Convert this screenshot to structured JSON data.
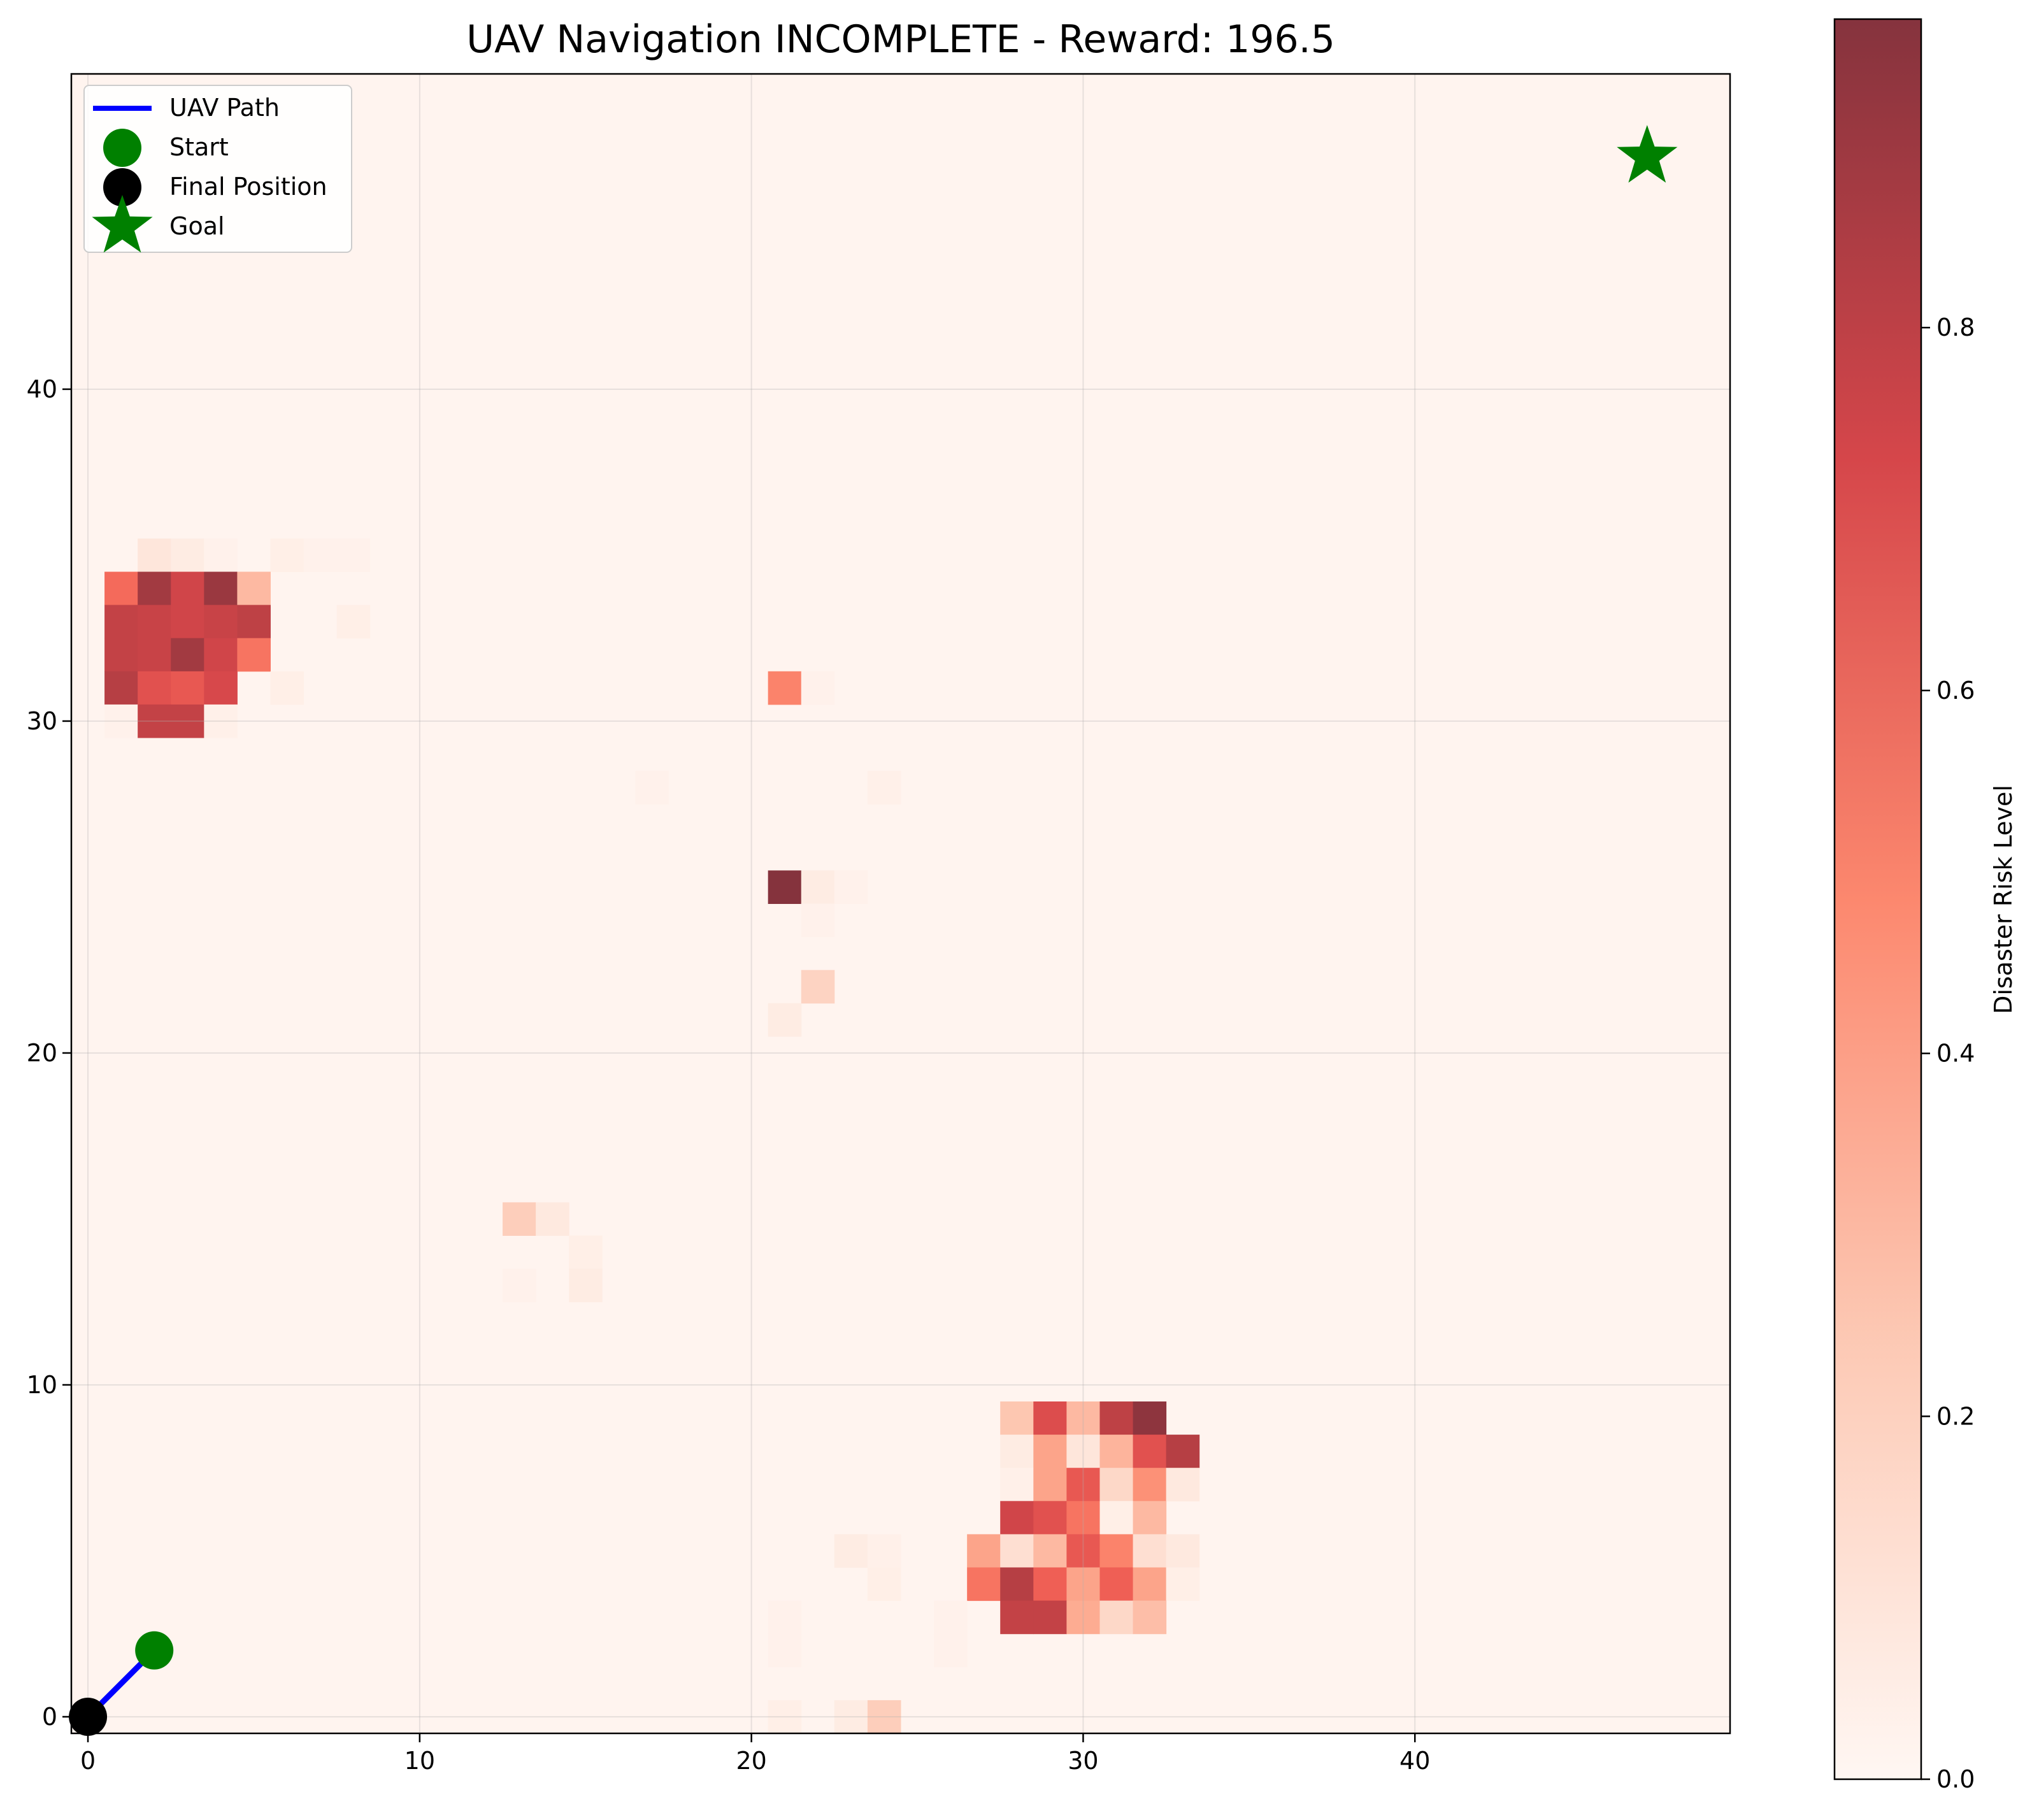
{
  "chart_data": {
    "type": "heatmap",
    "title": "UAV Navigation INCOMPLETE - Reward: 196.5",
    "xlabel": "",
    "ylabel": "",
    "xlim": [
      -0.5,
      49.5
    ],
    "ylim": [
      -0.5,
      49.5
    ],
    "x_ticks": [
      0,
      10,
      20,
      30,
      40
    ],
    "y_ticks": [
      0,
      10,
      20,
      30,
      40
    ],
    "grid": true,
    "legend_placement": "upper-left",
    "legend": [
      {
        "label": "UAV Path",
        "marker": "line",
        "color": "#0000ff"
      },
      {
        "label": "Start",
        "marker": "circle",
        "color": "#008000"
      },
      {
        "label": "Final Position",
        "marker": "circle",
        "color": "#000000"
      },
      {
        "label": "Goal",
        "marker": "star",
        "color": "#008000"
      }
    ],
    "path": [
      [
        2,
        2
      ],
      [
        0,
        0
      ]
    ],
    "start": [
      2,
      2
    ],
    "final_position": [
      0,
      0
    ],
    "goal": [
      47,
      47
    ],
    "colorbar": {
      "label": "Disaster Risk Level",
      "range": [
        0.0,
        0.97
      ],
      "ticks": [
        0.0,
        0.2,
        0.4,
        0.6,
        0.8
      ],
      "tick_labels": [
        "0.0",
        "0.2",
        "0.4",
        "0.6",
        "0.8"
      ],
      "colormap": "Reds",
      "alpha": 0.8
    },
    "grid_size": [
      50,
      50
    ],
    "background_risk": 0.02,
    "risk_cells": [
      [
        2,
        35,
        0.12
      ],
      [
        3,
        35,
        0.08
      ],
      [
        4,
        35,
        0.04
      ],
      [
        6,
        35,
        0.06
      ],
      [
        7,
        35,
        0.04
      ],
      [
        8,
        35,
        0.04
      ],
      [
        1,
        34,
        0.58
      ],
      [
        2,
        34,
        0.9
      ],
      [
        3,
        34,
        0.75
      ],
      [
        4,
        34,
        0.92
      ],
      [
        5,
        34,
        0.3
      ],
      [
        1,
        33,
        0.8
      ],
      [
        2,
        33,
        0.78
      ],
      [
        3,
        33,
        0.75
      ],
      [
        4,
        33,
        0.78
      ],
      [
        5,
        33,
        0.82
      ],
      [
        8,
        33,
        0.06
      ],
      [
        1,
        32,
        0.8
      ],
      [
        2,
        32,
        0.78
      ],
      [
        3,
        32,
        0.9
      ],
      [
        4,
        32,
        0.75
      ],
      [
        5,
        32,
        0.55
      ],
      [
        1,
        31,
        0.85
      ],
      [
        2,
        31,
        0.68
      ],
      [
        3,
        31,
        0.65
      ],
      [
        4,
        31,
        0.72
      ],
      [
        6,
        31,
        0.06
      ],
      [
        1,
        30,
        0.04
      ],
      [
        2,
        30,
        0.8
      ],
      [
        3,
        30,
        0.8
      ],
      [
        4,
        30,
        0.05
      ],
      [
        21,
        31,
        0.5
      ],
      [
        22,
        31,
        0.04
      ],
      [
        17,
        28,
        0.04
      ],
      [
        24,
        28,
        0.05
      ],
      [
        21,
        25,
        0.97
      ],
      [
        22,
        25,
        0.08
      ],
      [
        23,
        25,
        0.04
      ],
      [
        22,
        24,
        0.04
      ],
      [
        22,
        22,
        0.2
      ],
      [
        21,
        21,
        0.08
      ],
      [
        13,
        15,
        0.22
      ],
      [
        14,
        15,
        0.1
      ],
      [
        15,
        14,
        0.06
      ],
      [
        13,
        13,
        0.04
      ],
      [
        15,
        13,
        0.08
      ],
      [
        28,
        9,
        0.25
      ],
      [
        29,
        9,
        0.7
      ],
      [
        30,
        9,
        0.3
      ],
      [
        31,
        9,
        0.82
      ],
      [
        32,
        9,
        0.95
      ],
      [
        28,
        8,
        0.08
      ],
      [
        29,
        8,
        0.38
      ],
      [
        30,
        8,
        0.12
      ],
      [
        31,
        8,
        0.32
      ],
      [
        32,
        8,
        0.68
      ],
      [
        33,
        8,
        0.85
      ],
      [
        28,
        7,
        0.05
      ],
      [
        29,
        7,
        0.38
      ],
      [
        30,
        7,
        0.65
      ],
      [
        31,
        7,
        0.18
      ],
      [
        32,
        7,
        0.45
      ],
      [
        33,
        7,
        0.1
      ],
      [
        28,
        6,
        0.75
      ],
      [
        29,
        6,
        0.68
      ],
      [
        30,
        6,
        0.55
      ],
      [
        31,
        6,
        0.06
      ],
      [
        32,
        6,
        0.3
      ],
      [
        23,
        5,
        0.08
      ],
      [
        24,
        5,
        0.05
      ],
      [
        27,
        5,
        0.38
      ],
      [
        28,
        5,
        0.15
      ],
      [
        29,
        5,
        0.3
      ],
      [
        30,
        5,
        0.65
      ],
      [
        31,
        5,
        0.5
      ],
      [
        32,
        5,
        0.15
      ],
      [
        33,
        5,
        0.1
      ],
      [
        24,
        4,
        0.06
      ],
      [
        27,
        4,
        0.55
      ],
      [
        28,
        4,
        0.85
      ],
      [
        29,
        4,
        0.62
      ],
      [
        30,
        4,
        0.38
      ],
      [
        31,
        4,
        0.62
      ],
      [
        32,
        4,
        0.38
      ],
      [
        33,
        4,
        0.06
      ],
      [
        21,
        3,
        0.04
      ],
      [
        26,
        3,
        0.04
      ],
      [
        28,
        3,
        0.8
      ],
      [
        29,
        3,
        0.8
      ],
      [
        30,
        3,
        0.35
      ],
      [
        31,
        3,
        0.18
      ],
      [
        32,
        3,
        0.28
      ],
      [
        21,
        2,
        0.04
      ],
      [
        26,
        2,
        0.04
      ],
      [
        21,
        0,
        0.06
      ],
      [
        23,
        0,
        0.08
      ],
      [
        24,
        0,
        0.22
      ]
    ]
  }
}
